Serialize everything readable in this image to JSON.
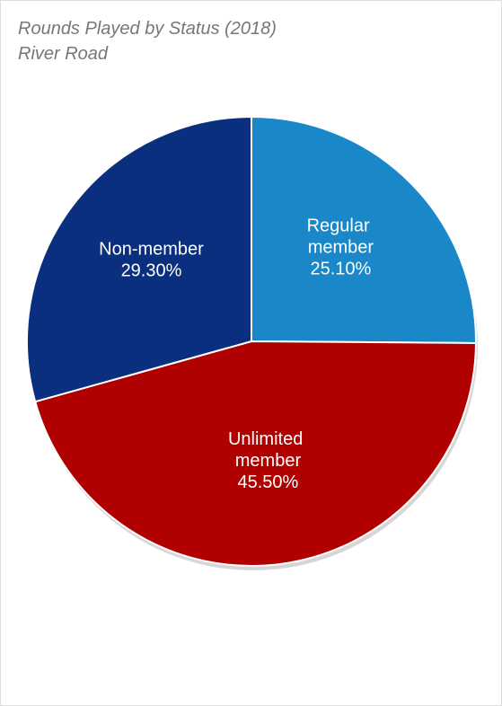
{
  "chart_data": {
    "type": "pie",
    "title": "Rounds Played by Status (2018)",
    "subtitle": "River Road",
    "categories": [
      "Regular member",
      "Unlimited member",
      "Non-member"
    ],
    "values": [
      25.1,
      45.5,
      29.3
    ],
    "value_labels": [
      "25.10%",
      "45.50%",
      "29.30%"
    ],
    "colors": [
      "#1a87c9",
      "#b00000",
      "#0a2f7f"
    ]
  }
}
